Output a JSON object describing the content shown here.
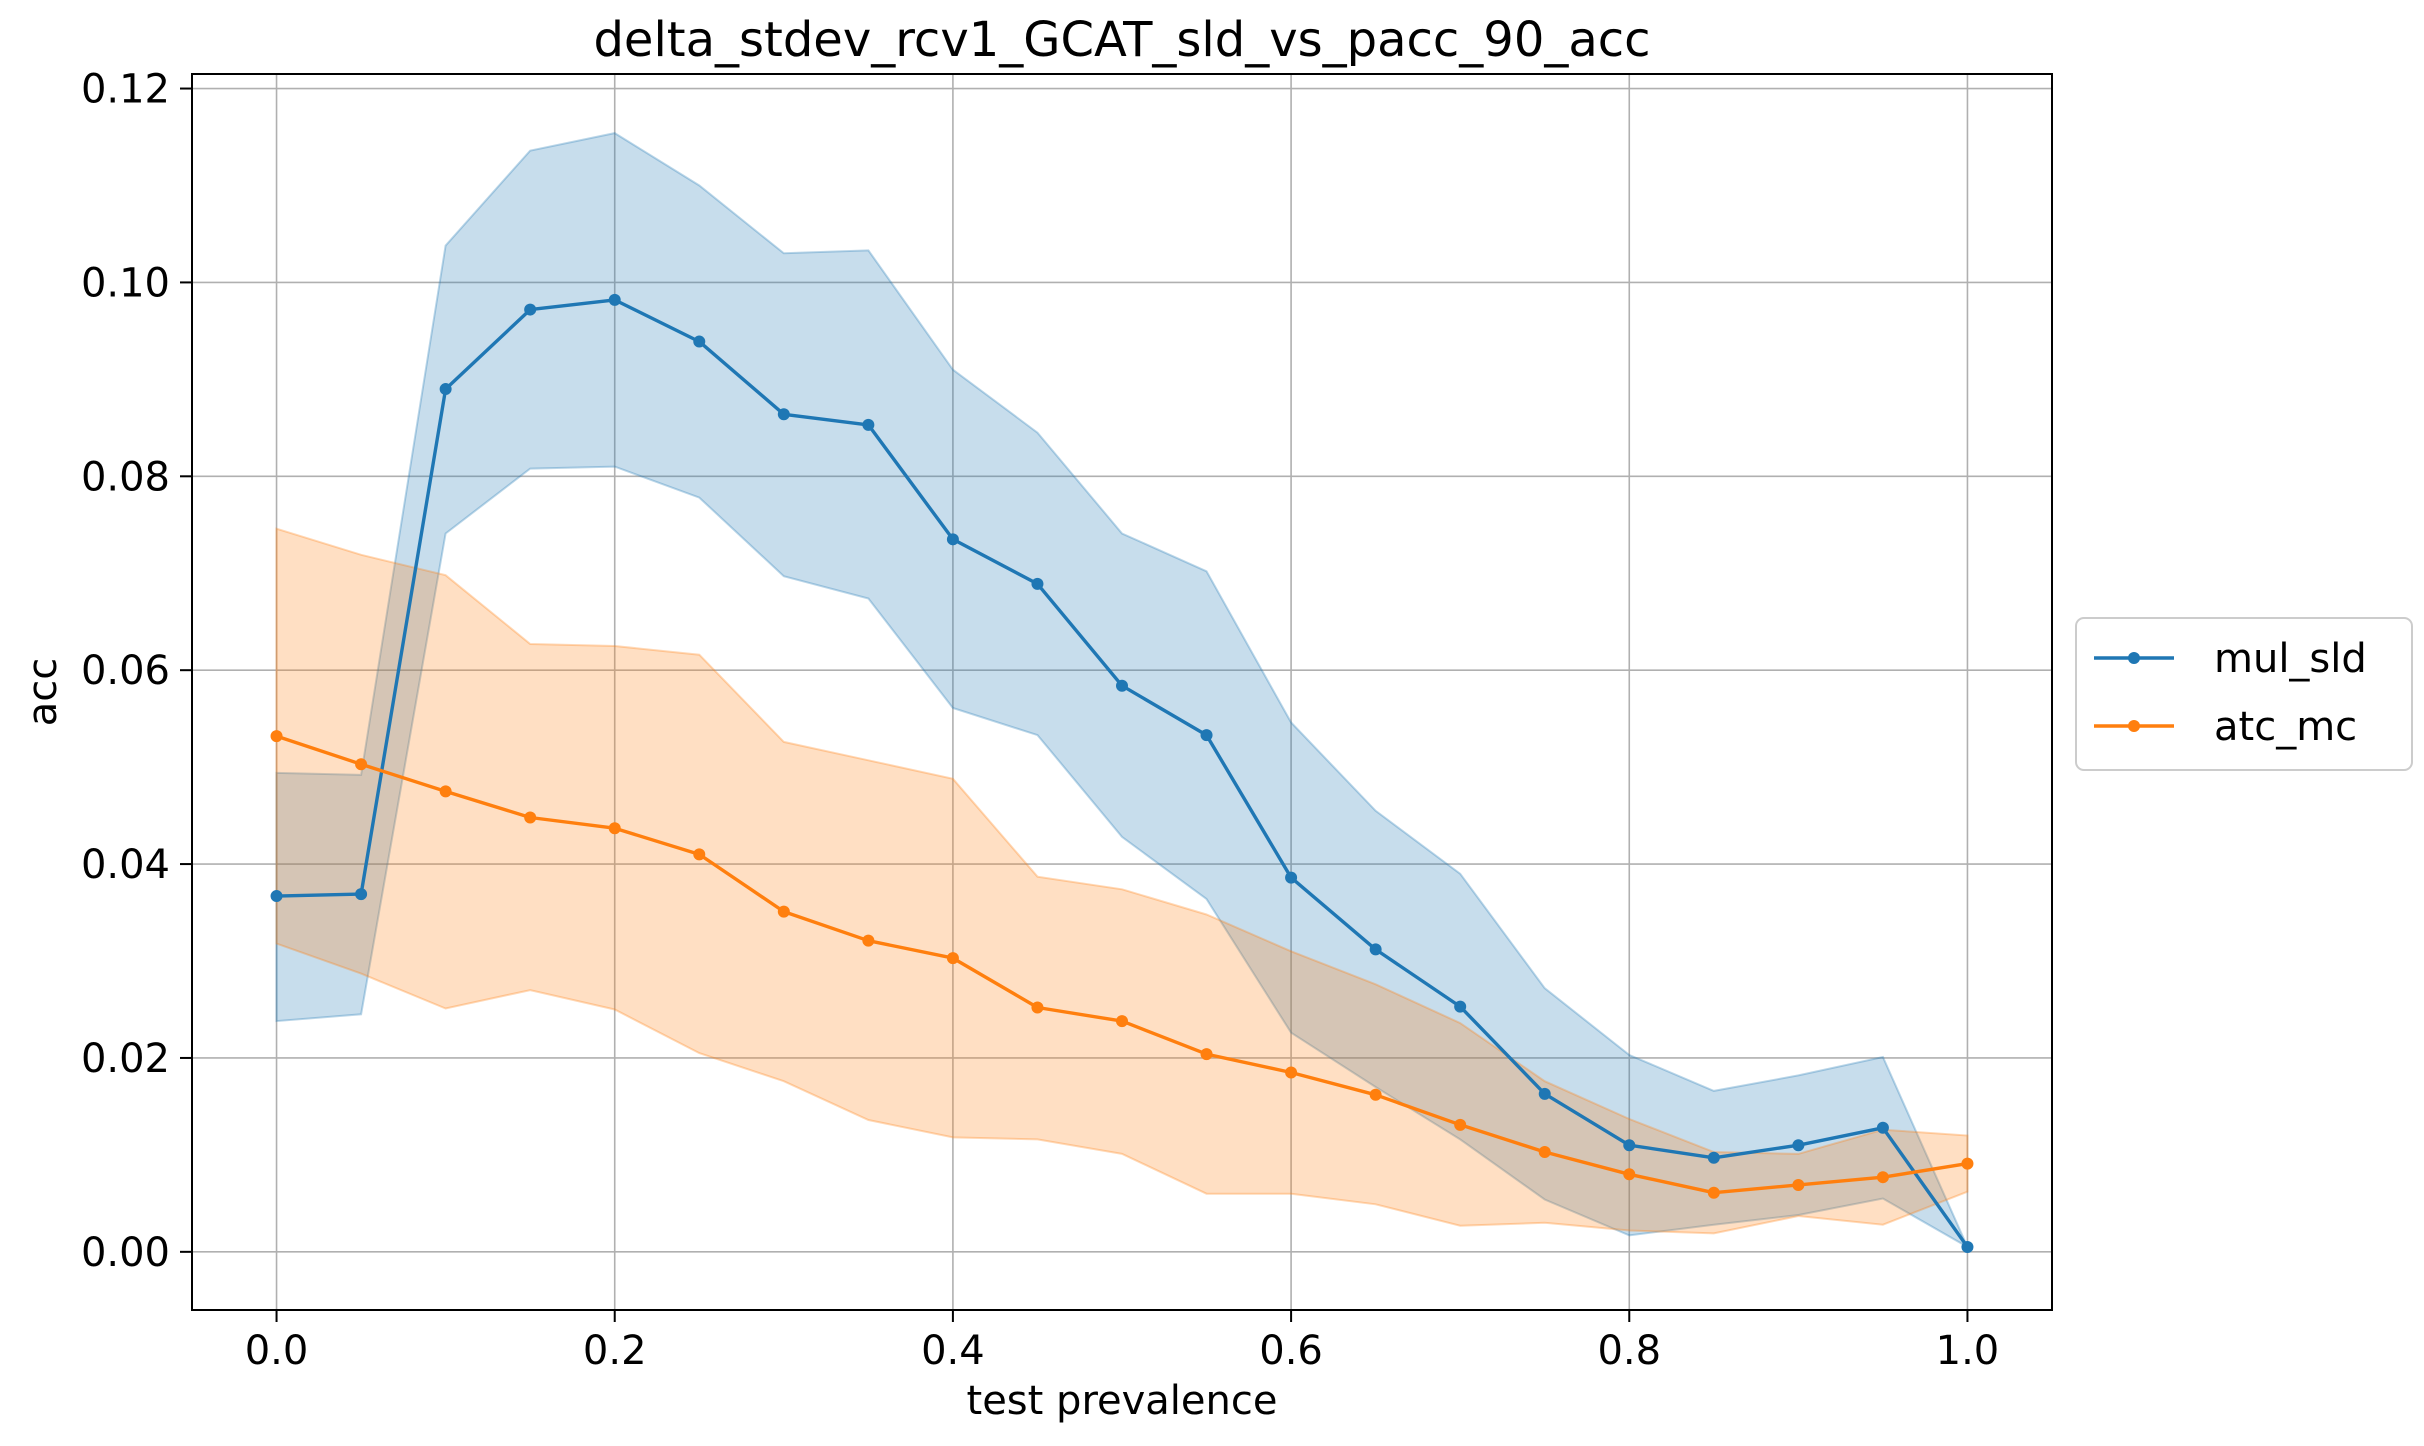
{
  "chart_data": {
    "type": "line",
    "title": "delta_stdev_rcv1_GCAT_sld_vs_pacc_90_acc",
    "xlabel": "test prevalence",
    "ylabel": "acc",
    "xlim": [
      -0.05,
      1.05
    ],
    "ylim": [
      -0.006,
      0.1215
    ],
    "xticks": [
      0.0,
      0.2,
      0.4,
      0.6,
      0.8,
      1.0
    ],
    "xtick_labels": [
      "0.0",
      "0.2",
      "0.4",
      "0.6",
      "0.8",
      "1.0"
    ],
    "yticks": [
      0.0,
      0.02,
      0.04,
      0.06,
      0.08,
      0.1,
      0.12
    ],
    "ytick_labels": [
      "0.00",
      "0.02",
      "0.04",
      "0.06",
      "0.08",
      "0.10",
      "0.12"
    ],
    "grid": true,
    "legend_position": "outside-right",
    "x": [
      0.0,
      0.05,
      0.1,
      0.15,
      0.2,
      0.25,
      0.3,
      0.35,
      0.4,
      0.45,
      0.5,
      0.55,
      0.6,
      0.65,
      0.7,
      0.75,
      0.8,
      0.85,
      0.9,
      0.95,
      1.0
    ],
    "series": [
      {
        "name": "mul_sld",
        "color": "#1f77b4",
        "values": [
          0.0367,
          0.0369,
          0.089,
          0.0972,
          0.0982,
          0.0939,
          0.0864,
          0.0853,
          0.0735,
          0.0689,
          0.0584,
          0.0533,
          0.0386,
          0.0312,
          0.0253,
          0.0163,
          0.011,
          0.0097,
          0.011,
          0.0128,
          0.0005
        ],
        "upper": [
          0.0494,
          0.0492,
          0.1038,
          0.1136,
          0.1154,
          0.11,
          0.103,
          0.1033,
          0.091,
          0.0845,
          0.0741,
          0.0702,
          0.0546,
          0.0455,
          0.039,
          0.0272,
          0.0203,
          0.0166,
          0.0182,
          0.0201,
          0.0005
        ],
        "lower": [
          0.0238,
          0.0245,
          0.0741,
          0.0808,
          0.081,
          0.0778,
          0.0697,
          0.0674,
          0.0561,
          0.0533,
          0.0428,
          0.0364,
          0.0226,
          0.017,
          0.0116,
          0.0054,
          0.0017,
          0.0028,
          0.0038,
          0.0055,
          0.0005
        ]
      },
      {
        "name": "atc_mc",
        "color": "#ff7f0e",
        "values": [
          0.0532,
          0.0503,
          0.0475,
          0.0448,
          0.0437,
          0.041,
          0.0351,
          0.0321,
          0.0303,
          0.0252,
          0.0238,
          0.0204,
          0.0185,
          0.0162,
          0.0131,
          0.0103,
          0.008,
          0.0061,
          0.0069,
          0.0077,
          0.0091
        ],
        "upper": [
          0.0746,
          0.0719,
          0.0698,
          0.0627,
          0.0625,
          0.0616,
          0.0526,
          0.0507,
          0.0488,
          0.0387,
          0.0374,
          0.0348,
          0.031,
          0.0276,
          0.0236,
          0.0176,
          0.0137,
          0.0103,
          0.0101,
          0.0126,
          0.012
        ],
        "lower": [
          0.0318,
          0.0287,
          0.0251,
          0.027,
          0.025,
          0.0205,
          0.0176,
          0.0136,
          0.0118,
          0.0116,
          0.0101,
          0.006,
          0.006,
          0.0049,
          0.0027,
          0.003,
          0.0022,
          0.0019,
          0.0037,
          0.0028,
          0.0062
        ]
      }
    ]
  }
}
